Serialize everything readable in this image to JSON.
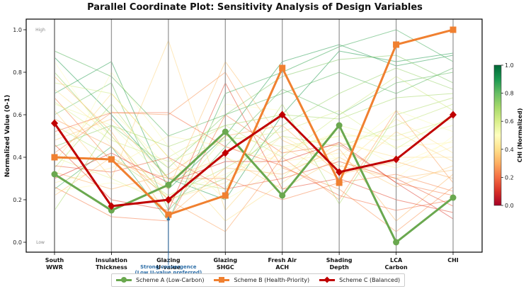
{
  "chart_data": {
    "type": "line",
    "subtype": "parallel-coordinates",
    "title": "Parallel Coordinate Plot: Sensitivity Analysis of Design Variables",
    "ylabel": "Normalized Value (0-1)",
    "ylim": [
      0,
      1.0
    ],
    "yticks": [
      "0.0",
      "0.2",
      "0.4",
      "0.6",
      "0.8",
      "1.0"
    ],
    "ytick_values": [
      0,
      0.2,
      0.4,
      0.6,
      0.8,
      1.0
    ],
    "axis_high_label": "High",
    "axis_low_label": "Low",
    "axes": [
      {
        "line1": "South",
        "line2": "WWR"
      },
      {
        "line1": "Insulation",
        "line2": "Thickness"
      },
      {
        "line1": "Glazing",
        "line2": "U-value"
      },
      {
        "line1": "Glazing",
        "line2": "SHGC"
      },
      {
        "line1": "Fresh Air",
        "line2": "ACH"
      },
      {
        "line1": "Shading",
        "line2": "Depth"
      },
      {
        "line1": "LCA",
        "line2": "Carbon"
      },
      {
        "line1": "CHI",
        "line2": ""
      }
    ],
    "highlighted_series": [
      {
        "name": "Scheme A (Low-Carbon)",
        "color": "#6aa84f",
        "marker": "circle",
        "values": [
          0.32,
          0.15,
          0.27,
          0.52,
          0.22,
          0.55,
          0.0,
          0.21
        ]
      },
      {
        "name": "Scheme B (Health-Priority)",
        "color": "#f08030",
        "marker": "square",
        "values": [
          0.4,
          0.39,
          0.13,
          0.22,
          0.82,
          0.28,
          0.93,
          1.0
        ]
      },
      {
        "name": "Scheme C (Balanced)",
        "color": "#c00000",
        "marker": "diamond",
        "values": [
          0.56,
          0.17,
          0.2,
          0.42,
          0.6,
          0.33,
          0.39,
          0.6
        ]
      }
    ],
    "background_series": [
      [
        0.87,
        0.6,
        0.3,
        0.2,
        0.6,
        0.9,
        0.85,
        0.89
      ],
      [
        0.7,
        0.85,
        0.25,
        0.5,
        0.85,
        0.93,
        0.83,
        0.88
      ],
      [
        0.25,
        0.45,
        0.1,
        0.7,
        0.8,
        0.92,
        1.0,
        0.85
      ],
      [
        0.6,
        0.75,
        0.15,
        0.45,
        0.72,
        0.6,
        0.75,
        0.8
      ],
      [
        0.45,
        0.55,
        0.35,
        0.6,
        0.78,
        0.86,
        0.88,
        0.75
      ],
      [
        0.8,
        0.5,
        0.2,
        0.3,
        0.55,
        0.7,
        0.82,
        0.72
      ],
      [
        0.35,
        0.65,
        0.3,
        0.25,
        0.65,
        0.18,
        0.6,
        0.68
      ],
      [
        0.55,
        0.4,
        0.22,
        0.35,
        0.5,
        0.45,
        0.55,
        0.65
      ],
      [
        0.75,
        0.7,
        0.4,
        0.55,
        0.4,
        0.6,
        0.78,
        0.62
      ],
      [
        0.4,
        0.3,
        0.18,
        0.5,
        0.45,
        0.5,
        0.5,
        0.58
      ],
      [
        0.65,
        0.55,
        0.28,
        0.4,
        0.3,
        0.55,
        0.48,
        0.55
      ],
      [
        0.3,
        0.8,
        0.45,
        0.2,
        0.35,
        0.4,
        0.62,
        0.52
      ],
      [
        0.85,
        0.45,
        0.25,
        0.65,
        0.62,
        0.38,
        0.3,
        0.5
      ],
      [
        0.5,
        0.62,
        0.35,
        0.3,
        0.42,
        0.52,
        0.45,
        0.47
      ],
      [
        0.28,
        0.35,
        0.5,
        0.45,
        0.38,
        0.42,
        0.35,
        0.45
      ],
      [
        0.72,
        0.5,
        0.2,
        0.28,
        0.5,
        0.35,
        0.58,
        0.42
      ],
      [
        0.38,
        0.7,
        0.4,
        0.1,
        0.28,
        0.47,
        0.4,
        0.4
      ],
      [
        0.62,
        0.3,
        0.95,
        0.15,
        0.45,
        0.3,
        0.52,
        0.38
      ],
      [
        0.48,
        0.58,
        0.3,
        0.4,
        0.25,
        0.4,
        0.26,
        0.36
      ],
      [
        0.22,
        0.4,
        0.25,
        0.85,
        0.48,
        0.36,
        0.3,
        0.34
      ],
      [
        0.78,
        0.52,
        0.12,
        0.35,
        0.32,
        0.44,
        0.1,
        0.32
      ],
      [
        0.33,
        0.25,
        0.32,
        0.5,
        0.55,
        0.32,
        0.38,
        0.3
      ],
      [
        0.58,
        0.45,
        0.2,
        0.05,
        0.4,
        0.2,
        0.62,
        0.28
      ],
      [
        0.42,
        0.61,
        0.6,
        0.8,
        0.35,
        0.25,
        0.05,
        0.26
      ],
      [
        0.68,
        0.38,
        0.3,
        0.3,
        0.2,
        0.28,
        0.32,
        0.24
      ],
      [
        0.26,
        0.12,
        0.1,
        0.6,
        0.42,
        0.46,
        0.28,
        0.22
      ],
      [
        0.52,
        0.61,
        0.61,
        0.45,
        0.36,
        0.22,
        0.15,
        0.2
      ],
      [
        0.36,
        0.33,
        0.4,
        0.25,
        0.3,
        0.38,
        0.3,
        0.17
      ],
      [
        0.46,
        0.2,
        0.15,
        0.75,
        0.25,
        0.3,
        0.2,
        0.14
      ],
      [
        0.3,
        0.42,
        0.28,
        0.38,
        0.38,
        0.47,
        0.28,
        0.11
      ],
      [
        0.9,
        0.78,
        0.5,
        0.6,
        0.7,
        0.8,
        0.7,
        0.82
      ],
      [
        0.15,
        0.55,
        0.45,
        0.55,
        0.6,
        0.58,
        0.68,
        0.7
      ],
      [
        0.66,
        0.48,
        0.38,
        0.48,
        0.52,
        0.62,
        0.44,
        0.6
      ],
      [
        0.24,
        0.28,
        0.22,
        0.32,
        0.44,
        0.5,
        0.36,
        0.48
      ]
    ],
    "colorbar": {
      "label": "CHI (Normalized)",
      "ticks": [
        "0.0",
        "0.2",
        "0.4",
        "0.6",
        "0.8",
        "1.0"
      ],
      "tick_values": [
        0,
        0.2,
        0.4,
        0.6,
        0.8,
        1.0
      ],
      "range": [
        0,
        1
      ],
      "colormap": "RdYlGn"
    },
    "annotation": {
      "line1": "Strong convergence",
      "line2": "(Low U-value preferred)",
      "axis_index": 2,
      "color": "#2f6fa8"
    },
    "legend": {
      "placement": "bottom-center"
    }
  }
}
